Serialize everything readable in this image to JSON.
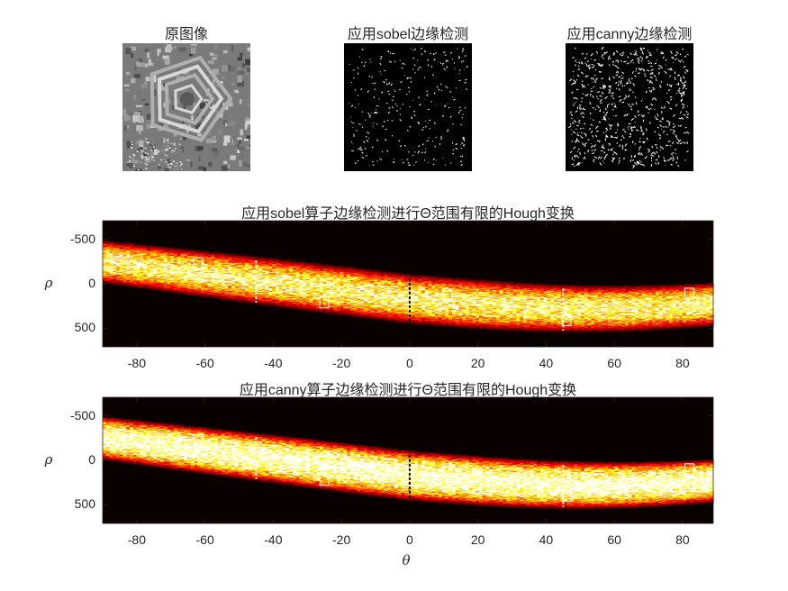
{
  "figure": {
    "top_titles": [
      "原图像",
      "应用sobel边缘检测",
      "应用canny边缘检测"
    ]
  },
  "chart_data": [
    {
      "type": "heatmap",
      "title": "应用sobel算子边缘检测进行Θ范围有限的Hough变换",
      "xlabel": "",
      "ylabel": "ρ",
      "xlim": [
        -90,
        89
      ],
      "ylim": [
        -710,
        710
      ],
      "y_reversed": true,
      "xticks": [
        -80,
        -60,
        -40,
        -20,
        0,
        20,
        40,
        60,
        80
      ],
      "yticks": [
        -500,
        0,
        500
      ],
      "colormap": "hot",
      "peaks_marked": [
        {
          "theta": -62,
          "rho": -230
        },
        {
          "theta": -25,
          "rho": 210
        },
        {
          "theta": 11,
          "rho": 120
        },
        {
          "theta": 46,
          "rho": 410
        },
        {
          "theta": 82,
          "rho": 110
        }
      ]
    },
    {
      "type": "heatmap",
      "title": "应用canny算子边缘检测进行Θ范围有限的Hough变换",
      "xlabel": "θ",
      "ylabel": "ρ",
      "xlim": [
        -90,
        89
      ],
      "ylim": [
        -710,
        710
      ],
      "y_reversed": true,
      "xticks": [
        -80,
        -60,
        -40,
        -20,
        0,
        20,
        40,
        60,
        80
      ],
      "yticks": [
        -500,
        0,
        500
      ],
      "colormap": "hot",
      "peaks_marked": [
        {
          "theta": -62,
          "rho": -230
        },
        {
          "theta": -25,
          "rho": 220
        },
        {
          "theta": 11,
          "rho": 100
        },
        {
          "theta": 46,
          "rho": 400
        },
        {
          "theta": 64,
          "rho": 260
        },
        {
          "theta": 82,
          "rho": 100
        }
      ]
    }
  ]
}
